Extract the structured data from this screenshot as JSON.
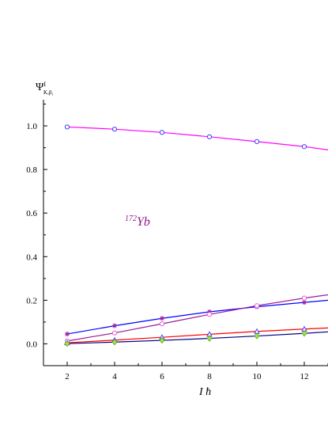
{
  "chart_data": {
    "type": "line",
    "xlabel": "I ħ",
    "ylabel": {
      "main": "Ψ",
      "sup": "I",
      "sub": "K,β₁"
    },
    "annotation": {
      "mass": "172",
      "element": "Yb",
      "color": "#8b1a8b"
    },
    "xlim": [
      1,
      13
    ],
    "ylim": [
      -0.1,
      1.12
    ],
    "x_ticks": [
      2,
      4,
      6,
      8,
      10,
      12
    ],
    "x_tick_labels": [
      "2",
      "4",
      "6",
      "8",
      "10",
      "12"
    ],
    "y_ticks": [
      0.0,
      0.2,
      0.4,
      0.6,
      0.8,
      1.0
    ],
    "y_tick_labels": [
      "0.0",
      "0.2",
      "0.4",
      "0.6",
      "0.8",
      "1.0"
    ],
    "grid": false,
    "x": [
      2,
      4,
      6,
      8,
      10,
      12
    ],
    "series": [
      {
        "color": "#ff00ff",
        "line_color": "#ff00ff",
        "marker": "circle",
        "marker_color": "#3b3bff",
        "values": [
          0.995,
          0.985,
          0.97,
          0.95,
          0.928,
          0.905
        ],
        "line_end": 0.89
      },
      {
        "color": "#0000ff",
        "line_color": "#0000ff",
        "marker": "star",
        "marker_color": "#9b1b9b",
        "values": [
          0.045,
          0.083,
          0.117,
          0.147,
          0.17,
          0.19
        ],
        "line_end": 0.2
      },
      {
        "color": "#9b1b9b",
        "line_color": "#9b1b9b",
        "marker": "circle",
        "marker_color": "#e060e0",
        "values": [
          0.013,
          0.05,
          0.092,
          0.135,
          0.175,
          0.21
        ],
        "line_end": 0.225
      },
      {
        "color": "#ff0000",
        "line_color": "#ff0000",
        "marker": "triangle",
        "marker_color": "#4444ff",
        "values": [
          0.005,
          0.017,
          0.03,
          0.044,
          0.057,
          0.068
        ],
        "line_end": 0.073
      },
      {
        "color": "#000080",
        "line_color": "#000080",
        "marker": "diamond",
        "marker_color": "#90ee40",
        "values": [
          0.001,
          0.008,
          0.016,
          0.025,
          0.036,
          0.048
        ],
        "line_end": 0.055
      }
    ]
  }
}
